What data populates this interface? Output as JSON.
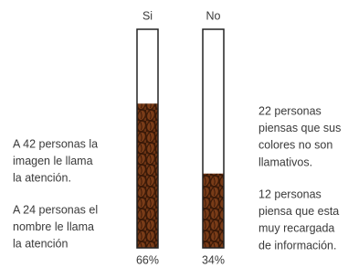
{
  "chart_data": {
    "type": "bar",
    "categories": [
      "Si",
      "No"
    ],
    "values": [
      66,
      34
    ],
    "value_labels": [
      "66%",
      "34%"
    ],
    "ylim": [
      0,
      100
    ],
    "color": "#5b2c12",
    "annotations_left": [
      [
        "A 42 personas la",
        "imagen le llama",
        "la atención."
      ],
      [
        "A 24 personas el",
        "nombre le llama",
        "la atención"
      ]
    ],
    "annotations_right": [
      [
        "22 personas",
        "piensas que sus",
        "colores no son",
        "llamativos."
      ],
      [
        "12 personas",
        "piensa que esta",
        "muy recargada",
        "de información."
      ]
    ]
  }
}
